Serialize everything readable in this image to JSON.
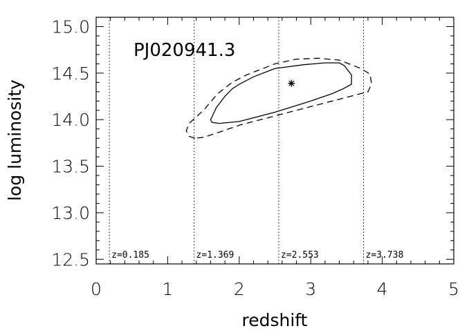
{
  "chart_data": {
    "type": "line",
    "title": "PJ020941.3",
    "xlabel": "redshift",
    "ylabel": "log luminosity",
    "xlim": [
      0,
      5
    ],
    "ylim": [
      12.45,
      15.1
    ],
    "x_ticks": [
      "0",
      "1",
      "2",
      "3",
      "4",
      "5"
    ],
    "y_ticks": [
      "12.5",
      "13.0",
      "13.5",
      "14.0",
      "14.5",
      "15.0"
    ],
    "grid": false,
    "legend": "none",
    "vertical_lines": [
      {
        "x": 0.185,
        "label": "z=0.185"
      },
      {
        "x": 1.369,
        "label": "z=1.369"
      },
      {
        "x": 2.553,
        "label": "z=2.553"
      },
      {
        "x": 3.738,
        "label": "z=3.738"
      }
    ],
    "marker": {
      "x": 2.73,
      "y": 14.39,
      "symbol": "*"
    },
    "series": [
      {
        "style": "solid",
        "points": [
          [
            1.62,
            14.03
          ],
          [
            1.6,
            14.0
          ],
          [
            1.62,
            13.97
          ],
          [
            1.72,
            13.96
          ],
          [
            2.0,
            13.98
          ],
          [
            2.5,
            14.08
          ],
          [
            3.0,
            14.2
          ],
          [
            3.3,
            14.28
          ],
          [
            3.45,
            14.33
          ],
          [
            3.57,
            14.38
          ],
          [
            3.57,
            14.48
          ],
          [
            3.47,
            14.58
          ],
          [
            3.4,
            14.61
          ],
          [
            3.2,
            14.61
          ],
          [
            2.9,
            14.59
          ],
          [
            2.5,
            14.55
          ],
          [
            2.2,
            14.46
          ],
          [
            2.0,
            14.38
          ],
          [
            1.9,
            14.33
          ],
          [
            1.8,
            14.25
          ],
          [
            1.68,
            14.13
          ],
          [
            1.62,
            14.03
          ]
        ]
      },
      {
        "style": "dashed",
        "points": [
          [
            1.38,
            13.8
          ],
          [
            1.3,
            13.82
          ],
          [
            1.26,
            13.88
          ],
          [
            1.3,
            13.96
          ],
          [
            1.5,
            14.1
          ],
          [
            1.7,
            14.28
          ],
          [
            1.9,
            14.4
          ],
          [
            2.1,
            14.48
          ],
          [
            2.5,
            14.6
          ],
          [
            2.8,
            14.65
          ],
          [
            3.1,
            14.66
          ],
          [
            3.4,
            14.64
          ],
          [
            3.7,
            14.55
          ],
          [
            3.83,
            14.49
          ],
          [
            3.85,
            14.38
          ],
          [
            3.8,
            14.3
          ],
          [
            3.7,
            14.28
          ],
          [
            3.4,
            14.22
          ],
          [
            3.0,
            14.14
          ],
          [
            2.5,
            14.04
          ],
          [
            2.0,
            13.94
          ],
          [
            1.7,
            13.86
          ],
          [
            1.5,
            13.81
          ],
          [
            1.38,
            13.8
          ]
        ]
      }
    ]
  }
}
